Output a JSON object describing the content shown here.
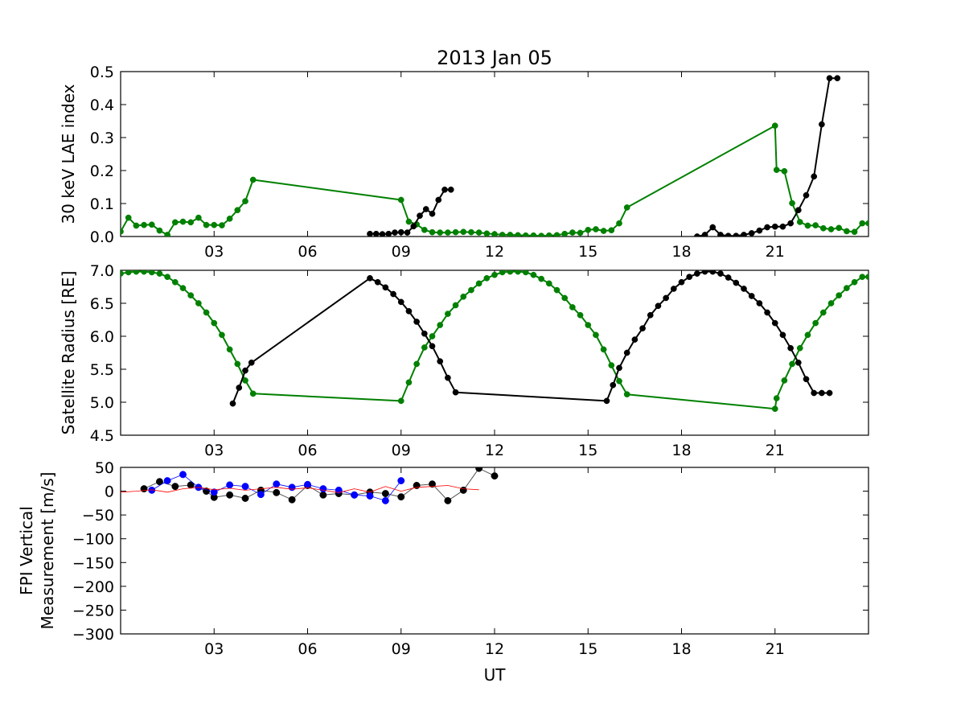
{
  "title": "2013 Jan 05",
  "colors": {
    "green": "#008000",
    "black": "#000000",
    "blue": "#0000ff",
    "red": "#ff0000",
    "gray": "#555555"
  },
  "chart_data": [
    {
      "type": "line",
      "ylabel": "30 keV LAE index",
      "xlabel": "",
      "xlim": [
        0,
        24
      ],
      "ylim": [
        0,
        0.5
      ],
      "yticks": [
        "0.0",
        "0.1",
        "0.2",
        "0.3",
        "0.4",
        "0.5"
      ],
      "xticks": [
        "03",
        "06",
        "09",
        "12",
        "15",
        "18",
        "21"
      ],
      "series": [
        {
          "color": "green",
          "x": [
            0,
            0.25,
            0.5,
            0.75,
            1.0,
            1.25,
            1.5,
            1.75,
            2.0,
            2.25,
            2.5,
            2.75,
            3.0,
            3.25,
            3.5,
            3.75,
            4.0,
            4.25,
            9.0,
            9.25,
            9.5,
            9.75,
            10.0,
            10.25,
            10.5,
            10.75,
            11.0,
            11.25,
            11.5,
            11.75,
            12.0,
            12.25,
            12.5,
            12.75,
            13.0,
            13.25,
            13.5,
            13.75,
            14.0,
            14.25,
            14.5,
            14.75,
            15.0,
            15.25,
            15.5,
            15.75,
            16.0,
            16.25,
            21.0,
            21.05,
            21.3,
            21.55,
            21.8,
            22.05,
            22.3,
            22.55,
            22.8,
            23.05,
            23.3,
            23.55,
            23.8,
            24.0
          ],
          "y": [
            0.015,
            0.057,
            0.033,
            0.035,
            0.036,
            0.018,
            0.005,
            0.043,
            0.045,
            0.043,
            0.057,
            0.035,
            0.035,
            0.034,
            0.054,
            0.08,
            0.107,
            0.172,
            0.111,
            0.045,
            0.037,
            0.02,
            0.013,
            0.012,
            0.012,
            0.013,
            0.014,
            0.013,
            0.012,
            0.009,
            0.007,
            0.005,
            0.005,
            0.004,
            0.003,
            0.003,
            0.002,
            0.003,
            0.004,
            0.008,
            0.012,
            0.011,
            0.02,
            0.022,
            0.017,
            0.019,
            0.04,
            0.088,
            0.336,
            0.202,
            0.198,
            0.101,
            0.044,
            0.033,
            0.034,
            0.025,
            0.022,
            0.026,
            0.016,
            0.014,
            0.04,
            0.04
          ]
        },
        {
          "color": "black",
          "x": [
            8.0,
            8.2,
            8.4,
            8.6,
            8.8,
            9.0,
            9.2,
            9.4,
            9.6,
            9.8,
            10.0,
            10.2,
            10.4,
            10.6
          ],
          "y": [
            0.008,
            0.008,
            0.007,
            0.008,
            0.012,
            0.013,
            0.012,
            0.031,
            0.063,
            0.083,
            0.069,
            0.111,
            0.142,
            0.142
          ]
        },
        {
          "color": "black",
          "x": [
            18.5,
            18.75,
            19.0,
            19.25,
            19.5,
            19.75,
            20.0,
            20.25,
            20.5,
            20.75,
            21.0,
            21.25,
            21.5,
            21.75,
            22.0,
            22.25,
            22.5,
            22.75,
            23.0
          ],
          "y": [
            0.0,
            0.005,
            0.028,
            0.005,
            0.002,
            0.002,
            0.005,
            0.01,
            0.018,
            0.028,
            0.03,
            0.03,
            0.04,
            0.08,
            0.125,
            0.182,
            0.34,
            0.48,
            0.48
          ]
        }
      ]
    },
    {
      "type": "line",
      "ylabel": "Satellite Radius [RE]",
      "xlabel": "",
      "xlim": [
        0,
        24
      ],
      "ylim": [
        4.5,
        7.0
      ],
      "yticks": [
        "4.5",
        "5.0",
        "5.5",
        "6.0",
        "6.5",
        "7.0"
      ],
      "xticks": [
        "03",
        "06",
        "09",
        "12",
        "15",
        "18",
        "21"
      ],
      "series": [
        {
          "color": "green",
          "x": [
            0,
            0.25,
            0.5,
            0.75,
            1.0,
            1.25,
            1.5,
            1.75,
            2.0,
            2.25,
            2.5,
            2.75,
            3.0,
            3.25,
            3.5,
            3.75,
            4.0,
            4.25,
            9.0,
            9.25,
            9.5,
            9.75,
            10.0,
            10.25,
            10.5,
            10.75,
            11.0,
            11.25,
            11.5,
            11.75,
            12.0,
            12.25,
            12.5,
            12.75,
            13.0,
            13.25,
            13.5,
            13.75,
            14.0,
            14.25,
            14.5,
            14.75,
            15.0,
            15.25,
            15.5,
            15.75,
            16.0,
            16.25,
            21.0,
            21.05,
            21.3,
            21.55,
            21.8,
            22.05,
            22.3,
            22.55,
            22.8,
            23.05,
            23.3,
            23.55,
            23.8,
            24.0
          ],
          "y": [
            6.95,
            6.97,
            6.98,
            6.98,
            6.97,
            6.95,
            6.9,
            6.82,
            6.73,
            6.62,
            6.5,
            6.36,
            6.2,
            6.02,
            5.8,
            5.58,
            5.33,
            5.13,
            5.02,
            5.3,
            5.58,
            5.83,
            6.0,
            6.17,
            6.34,
            6.47,
            6.6,
            6.7,
            6.8,
            6.88,
            6.93,
            6.97,
            6.98,
            6.98,
            6.97,
            6.93,
            6.87,
            6.8,
            6.7,
            6.58,
            6.44,
            6.32,
            6.17,
            6.02,
            5.8,
            5.56,
            5.32,
            5.12,
            4.9,
            5.06,
            5.33,
            5.58,
            5.82,
            6.02,
            6.2,
            6.36,
            6.5,
            6.62,
            6.73,
            6.82,
            6.9,
            6.9
          ]
        },
        {
          "color": "black",
          "x": [
            3.6,
            3.8,
            4.0,
            4.2,
            8.0,
            8.25,
            8.5,
            8.75,
            9.0,
            9.25,
            9.5,
            9.75,
            10.0,
            10.25,
            10.5,
            10.75,
            15.6,
            15.8,
            16.0,
            16.25,
            16.5,
            16.75,
            17.0,
            17.25,
            17.5,
            17.75,
            18.0,
            18.25,
            18.5,
            18.75,
            19.0,
            19.25,
            19.5,
            19.75,
            20.0,
            20.25,
            20.5,
            20.75,
            21.0,
            21.25,
            21.5,
            21.75,
            22.0,
            22.25,
            22.5,
            22.75
          ],
          "y": [
            4.98,
            5.22,
            5.48,
            5.6,
            6.88,
            6.82,
            6.74,
            6.64,
            6.52,
            6.38,
            6.22,
            6.04,
            5.85,
            5.62,
            5.37,
            5.15,
            5.02,
            5.26,
            5.52,
            5.75,
            5.95,
            6.12,
            6.32,
            6.46,
            6.58,
            6.72,
            6.82,
            6.9,
            6.95,
            6.98,
            6.98,
            6.95,
            6.89,
            6.81,
            6.72,
            6.61,
            6.5,
            6.36,
            6.2,
            6.02,
            5.82,
            5.6,
            5.35,
            5.14,
            5.14,
            5.14
          ]
        }
      ]
    },
    {
      "type": "line",
      "ylabel": "FPI Vertical\nMeasurement [m/s]",
      "xlabel": "UT",
      "xlim": [
        0,
        24
      ],
      "ylim": [
        -300,
        50
      ],
      "yticks": [
        "−300",
        "−250",
        "−200",
        "−150",
        "−100",
        "−50",
        "0",
        "50"
      ],
      "xticks": [
        "03",
        "06",
        "09",
        "12",
        "15",
        "18",
        "21"
      ],
      "series": [
        {
          "color": "black",
          "x": [
            0.75,
            1.25,
            1.75,
            2.25,
            2.75,
            3.0,
            3.5,
            4.0,
            4.5,
            5.0,
            5.5,
            6.0,
            6.5,
            7.0,
            7.5,
            8.0,
            8.5,
            9.0,
            9.5,
            10.0,
            10.5,
            11.0,
            11.5,
            12.0
          ],
          "y": [
            5,
            20,
            10,
            13,
            0,
            -13,
            -8,
            -15,
            2,
            -3,
            -18,
            12,
            -8,
            -5,
            -8,
            -2,
            -5,
            -12,
            12,
            15,
            -20,
            2,
            48,
            32
          ]
        },
        {
          "color": "blue",
          "x": [
            1.0,
            1.5,
            2.0,
            2.5,
            3.0,
            3.5,
            4.0,
            4.5,
            5.0,
            5.5,
            6.0,
            6.5,
            7.0,
            7.5,
            8.0,
            8.5,
            9.0
          ],
          "y": [
            2,
            22,
            35,
            8,
            -2,
            13,
            10,
            -7,
            15,
            8,
            14,
            5,
            2,
            -8,
            -10,
            -20,
            22
          ]
        },
        {
          "color": "red",
          "x": [
            0,
            0.5,
            1.0,
            1.5,
            2.0,
            2.5,
            3.0,
            3.5,
            4.0,
            4.5,
            5.0,
            5.5,
            6.0,
            6.5,
            7.0,
            7.5,
            8.0,
            8.5,
            9.0,
            9.5,
            10.0,
            10.5,
            11.0,
            11.5
          ],
          "y": [
            -2,
            0,
            3,
            -2,
            5,
            8,
            3,
            6,
            2,
            5,
            8,
            4,
            7,
            2,
            -3,
            5,
            -2,
            10,
            0,
            8,
            10,
            12,
            5,
            3
          ]
        }
      ]
    }
  ]
}
